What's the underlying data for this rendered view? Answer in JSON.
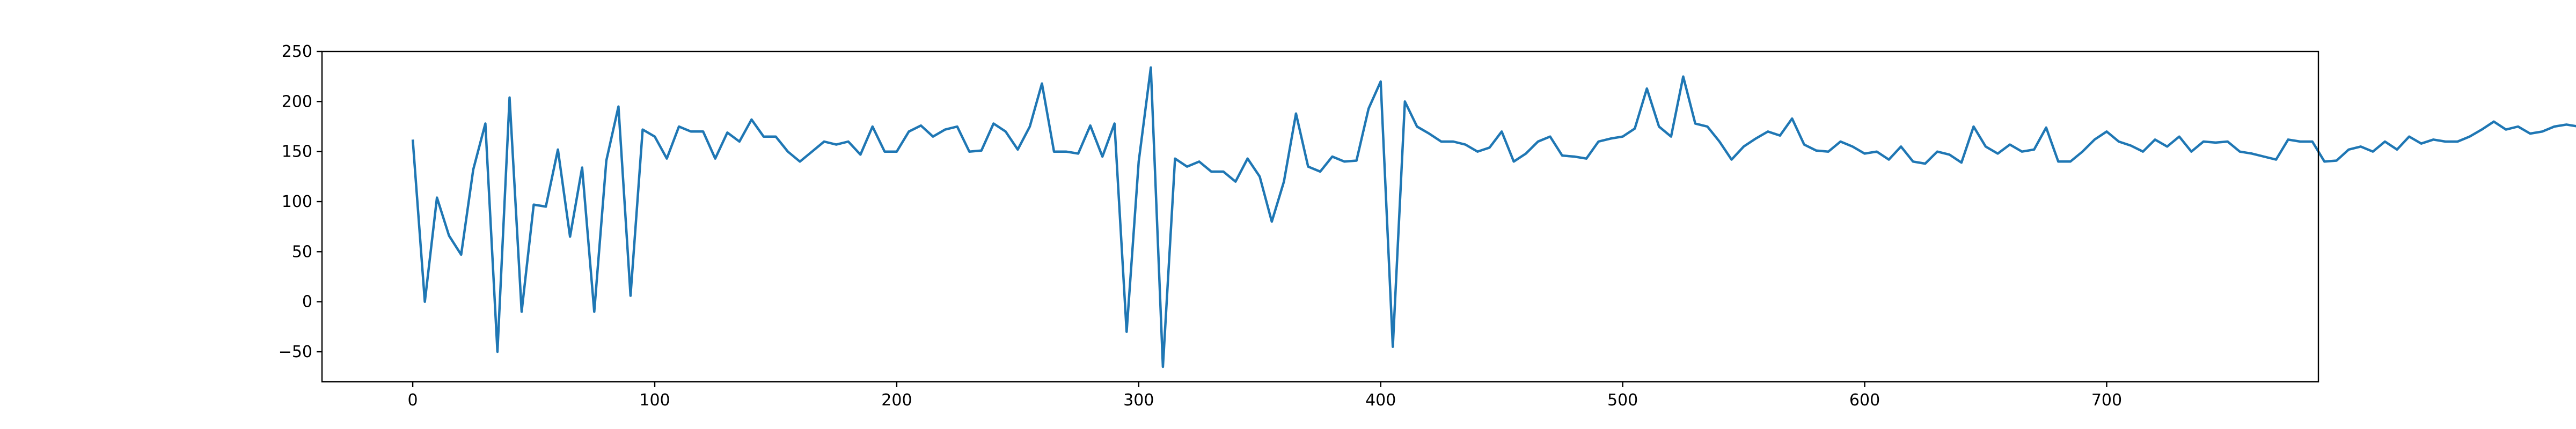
{
  "chart_data": {
    "type": "line",
    "title": "",
    "xlabel": "",
    "ylabel": "",
    "xlim": [
      -37.5,
      787.5
    ],
    "ylim": [
      -80,
      250
    ],
    "x_ticks": [
      0,
      100,
      200,
      300,
      400,
      500,
      600,
      700
    ],
    "y_ticks": [
      -50,
      0,
      50,
      100,
      150,
      200,
      250
    ],
    "x_tick_labels": [
      "0",
      "100",
      "200",
      "300",
      "400",
      "500",
      "600",
      "700"
    ],
    "y_tick_labels": [
      "−50",
      "0",
      "50",
      "100",
      "150",
      "200",
      "250"
    ],
    "grid": false,
    "line_color": "#1f77b4",
    "series": [
      {
        "x_start": 0,
        "x_step": 5,
        "values": [
          162,
          0,
          104,
          66,
          47,
          132,
          178,
          -50,
          204,
          -10,
          97,
          95,
          152,
          65,
          134,
          -10,
          141,
          195,
          6,
          172,
          165,
          143,
          175,
          170,
          170,
          143,
          169,
          160,
          182,
          165,
          165,
          150,
          140,
          150,
          160,
          157,
          160,
          147,
          175,
          150,
          150,
          170,
          176,
          165,
          172,
          175,
          150,
          151,
          178,
          170,
          152,
          175,
          218,
          150,
          150,
          148,
          176,
          145,
          178,
          -30,
          140,
          234,
          -65,
          143,
          135,
          140,
          130,
          130,
          120,
          143,
          125,
          80,
          120,
          188,
          135,
          130,
          145,
          140,
          141,
          193,
          220,
          -45,
          200,
          175,
          168,
          160,
          160,
          157,
          150,
          154,
          170,
          140,
          148,
          160,
          165,
          146,
          145,
          143,
          160,
          163,
          165,
          173,
          213,
          175,
          165,
          225,
          178,
          175,
          160,
          142,
          155,
          163,
          170,
          166,
          183,
          157,
          151,
          150,
          160,
          155,
          148,
          150,
          142,
          155,
          140,
          138,
          150,
          147,
          139,
          175,
          155,
          148,
          157,
          150,
          152,
          174,
          140,
          140,
          150,
          162,
          170,
          160,
          156,
          150,
          162,
          155,
          165,
          150,
          160,
          159,
          160,
          150,
          148,
          145,
          142,
          162,
          160,
          160,
          140,
          141,
          152,
          155,
          150,
          160,
          152,
          165,
          158,
          162,
          160,
          160,
          165,
          172,
          180,
          172,
          175,
          168,
          170,
          175,
          177,
          175,
          185,
          178,
          180,
          175,
          175,
          170,
          178,
          168,
          180,
          175,
          175,
          167,
          170,
          170,
          203,
          168,
          170,
          165,
          168,
          165,
          170,
          170,
          165,
          160,
          170,
          170,
          160,
          165,
          170,
          160,
          173,
          160,
          160,
          165,
          160,
          155,
          152,
          160,
          155,
          158,
          165,
          160,
          155,
          150,
          160,
          152,
          155,
          150,
          152,
          150,
          158,
          157,
          160,
          155,
          150,
          158,
          150,
          155,
          150,
          160,
          158,
          152,
          150,
          150,
          155,
          150,
          155,
          155,
          150,
          152,
          150,
          155,
          158,
          155,
          158,
          160,
          155,
          152,
          150,
          150,
          158,
          165,
          168,
          150,
          155,
          160,
          165,
          152,
          158,
          165,
          150,
          160,
          162,
          152,
          160,
          158,
          150,
          150,
          160,
          158,
          152,
          155,
          160,
          150,
          155,
          160,
          155,
          152,
          150,
          158,
          160,
          152,
          155,
          150,
          152,
          158,
          160,
          155,
          152,
          160,
          158,
          150,
          155,
          160,
          150,
          158,
          152,
          155,
          160,
          150,
          152,
          155,
          158,
          160,
          150,
          152,
          158,
          160,
          155,
          150,
          152,
          158,
          160,
          155,
          150,
          152,
          158,
          160,
          155,
          150,
          152,
          158,
          160,
          155,
          150,
          152,
          158,
          160,
          155,
          150,
          152,
          158,
          160,
          155,
          150,
          152,
          158,
          160,
          155,
          150,
          152,
          158,
          160,
          155,
          150,
          152,
          158,
          160,
          155,
          150,
          152,
          158,
          160,
          155,
          150,
          152,
          158,
          160,
          155,
          150,
          152,
          158,
          160,
          155,
          150,
          152,
          158,
          160,
          155,
          150,
          152,
          158,
          160,
          155,
          150,
          152,
          158,
          160,
          155,
          150,
          152,
          158,
          160,
          155,
          150,
          152,
          158,
          160,
          155,
          150,
          152,
          158,
          160,
          155,
          150,
          152,
          158,
          160,
          155,
          150,
          152,
          158,
          160,
          155,
          150,
          152,
          158,
          160,
          155,
          150,
          152,
          158,
          160,
          155,
          150,
          152,
          158,
          160,
          155,
          150,
          152,
          158,
          160,
          155,
          150,
          152,
          158,
          160,
          155,
          150,
          152,
          158,
          160,
          155,
          150,
          152,
          158,
          160,
          155,
          150,
          152,
          158,
          160,
          155,
          150,
          152,
          158,
          160,
          155,
          150,
          152,
          158,
          160,
          155,
          150,
          152,
          158,
          160,
          155,
          150,
          152,
          158,
          160,
          155,
          150,
          152,
          158,
          160,
          155,
          150,
          152,
          158,
          160,
          155,
          150,
          152,
          158,
          160,
          155,
          150,
          152,
          158,
          160,
          155,
          150,
          152,
          158,
          160,
          155,
          150,
          152,
          158,
          160,
          155,
          150,
          152,
          158,
          160,
          155,
          150,
          152,
          158,
          160,
          155,
          150,
          152,
          158,
          160,
          155,
          150,
          152,
          158,
          160,
          155,
          150,
          152,
          158,
          160,
          155,
          150,
          152,
          158,
          160,
          155,
          150,
          152,
          158,
          160,
          155,
          150,
          152,
          158,
          160,
          155,
          150,
          152,
          158,
          160,
          155,
          150,
          152,
          158,
          160,
          155,
          150,
          152,
          158,
          160,
          155,
          150,
          152,
          158,
          160,
          155,
          150,
          152,
          158,
          160,
          155,
          150,
          152,
          158,
          160,
          155,
          150,
          152,
          158,
          160,
          155,
          150,
          152,
          158,
          160,
          155,
          150,
          152,
          158,
          160,
          155,
          150,
          152,
          158,
          160,
          155,
          150,
          152,
          158,
          160,
          155,
          150,
          152,
          158,
          160,
          155,
          150,
          152,
          158,
          160,
          155,
          150,
          152,
          158,
          160,
          155,
          150,
          152,
          158,
          160,
          155,
          150,
          152,
          158,
          160,
          155,
          150,
          152,
          158,
          160,
          155,
          150,
          152,
          158,
          160,
          155,
          150,
          152,
          158,
          160,
          155,
          150,
          152,
          158,
          160,
          155,
          150
        ]
      }
    ]
  }
}
